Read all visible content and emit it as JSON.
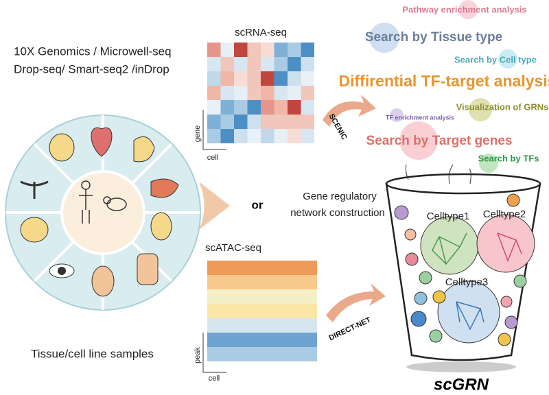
{
  "samples": {
    "platforms": [
      "10X Genomics / Microwell-seq",
      "Drop-seq/ Smart-seq2 /inDrop"
    ],
    "caption": "Tissue/cell line samples"
  },
  "scrna": {
    "title": "scRNA-seq",
    "y_axis": "gene",
    "x_axis": "cell",
    "method": "SCENIC"
  },
  "connector": "or",
  "scatac": {
    "title": "scATAC-seq",
    "y_axis": "peak",
    "x_axis": "cell",
    "method": "DIRECT-NET"
  },
  "construction": [
    "Gene regulatory",
    "network construction"
  ],
  "celltypes": [
    "Celltype1",
    "Celltype2",
    "Celltype3"
  ],
  "product": "scGRN",
  "features": [
    "Pathway enrichment analysis",
    "Search by Tissue type",
    "Search by Cell type",
    "Diffirential TF-target analysis",
    "Visualization of GRNs",
    "TF enrichment analysis",
    "Search by Target genes",
    "Search by TFs"
  ]
}
